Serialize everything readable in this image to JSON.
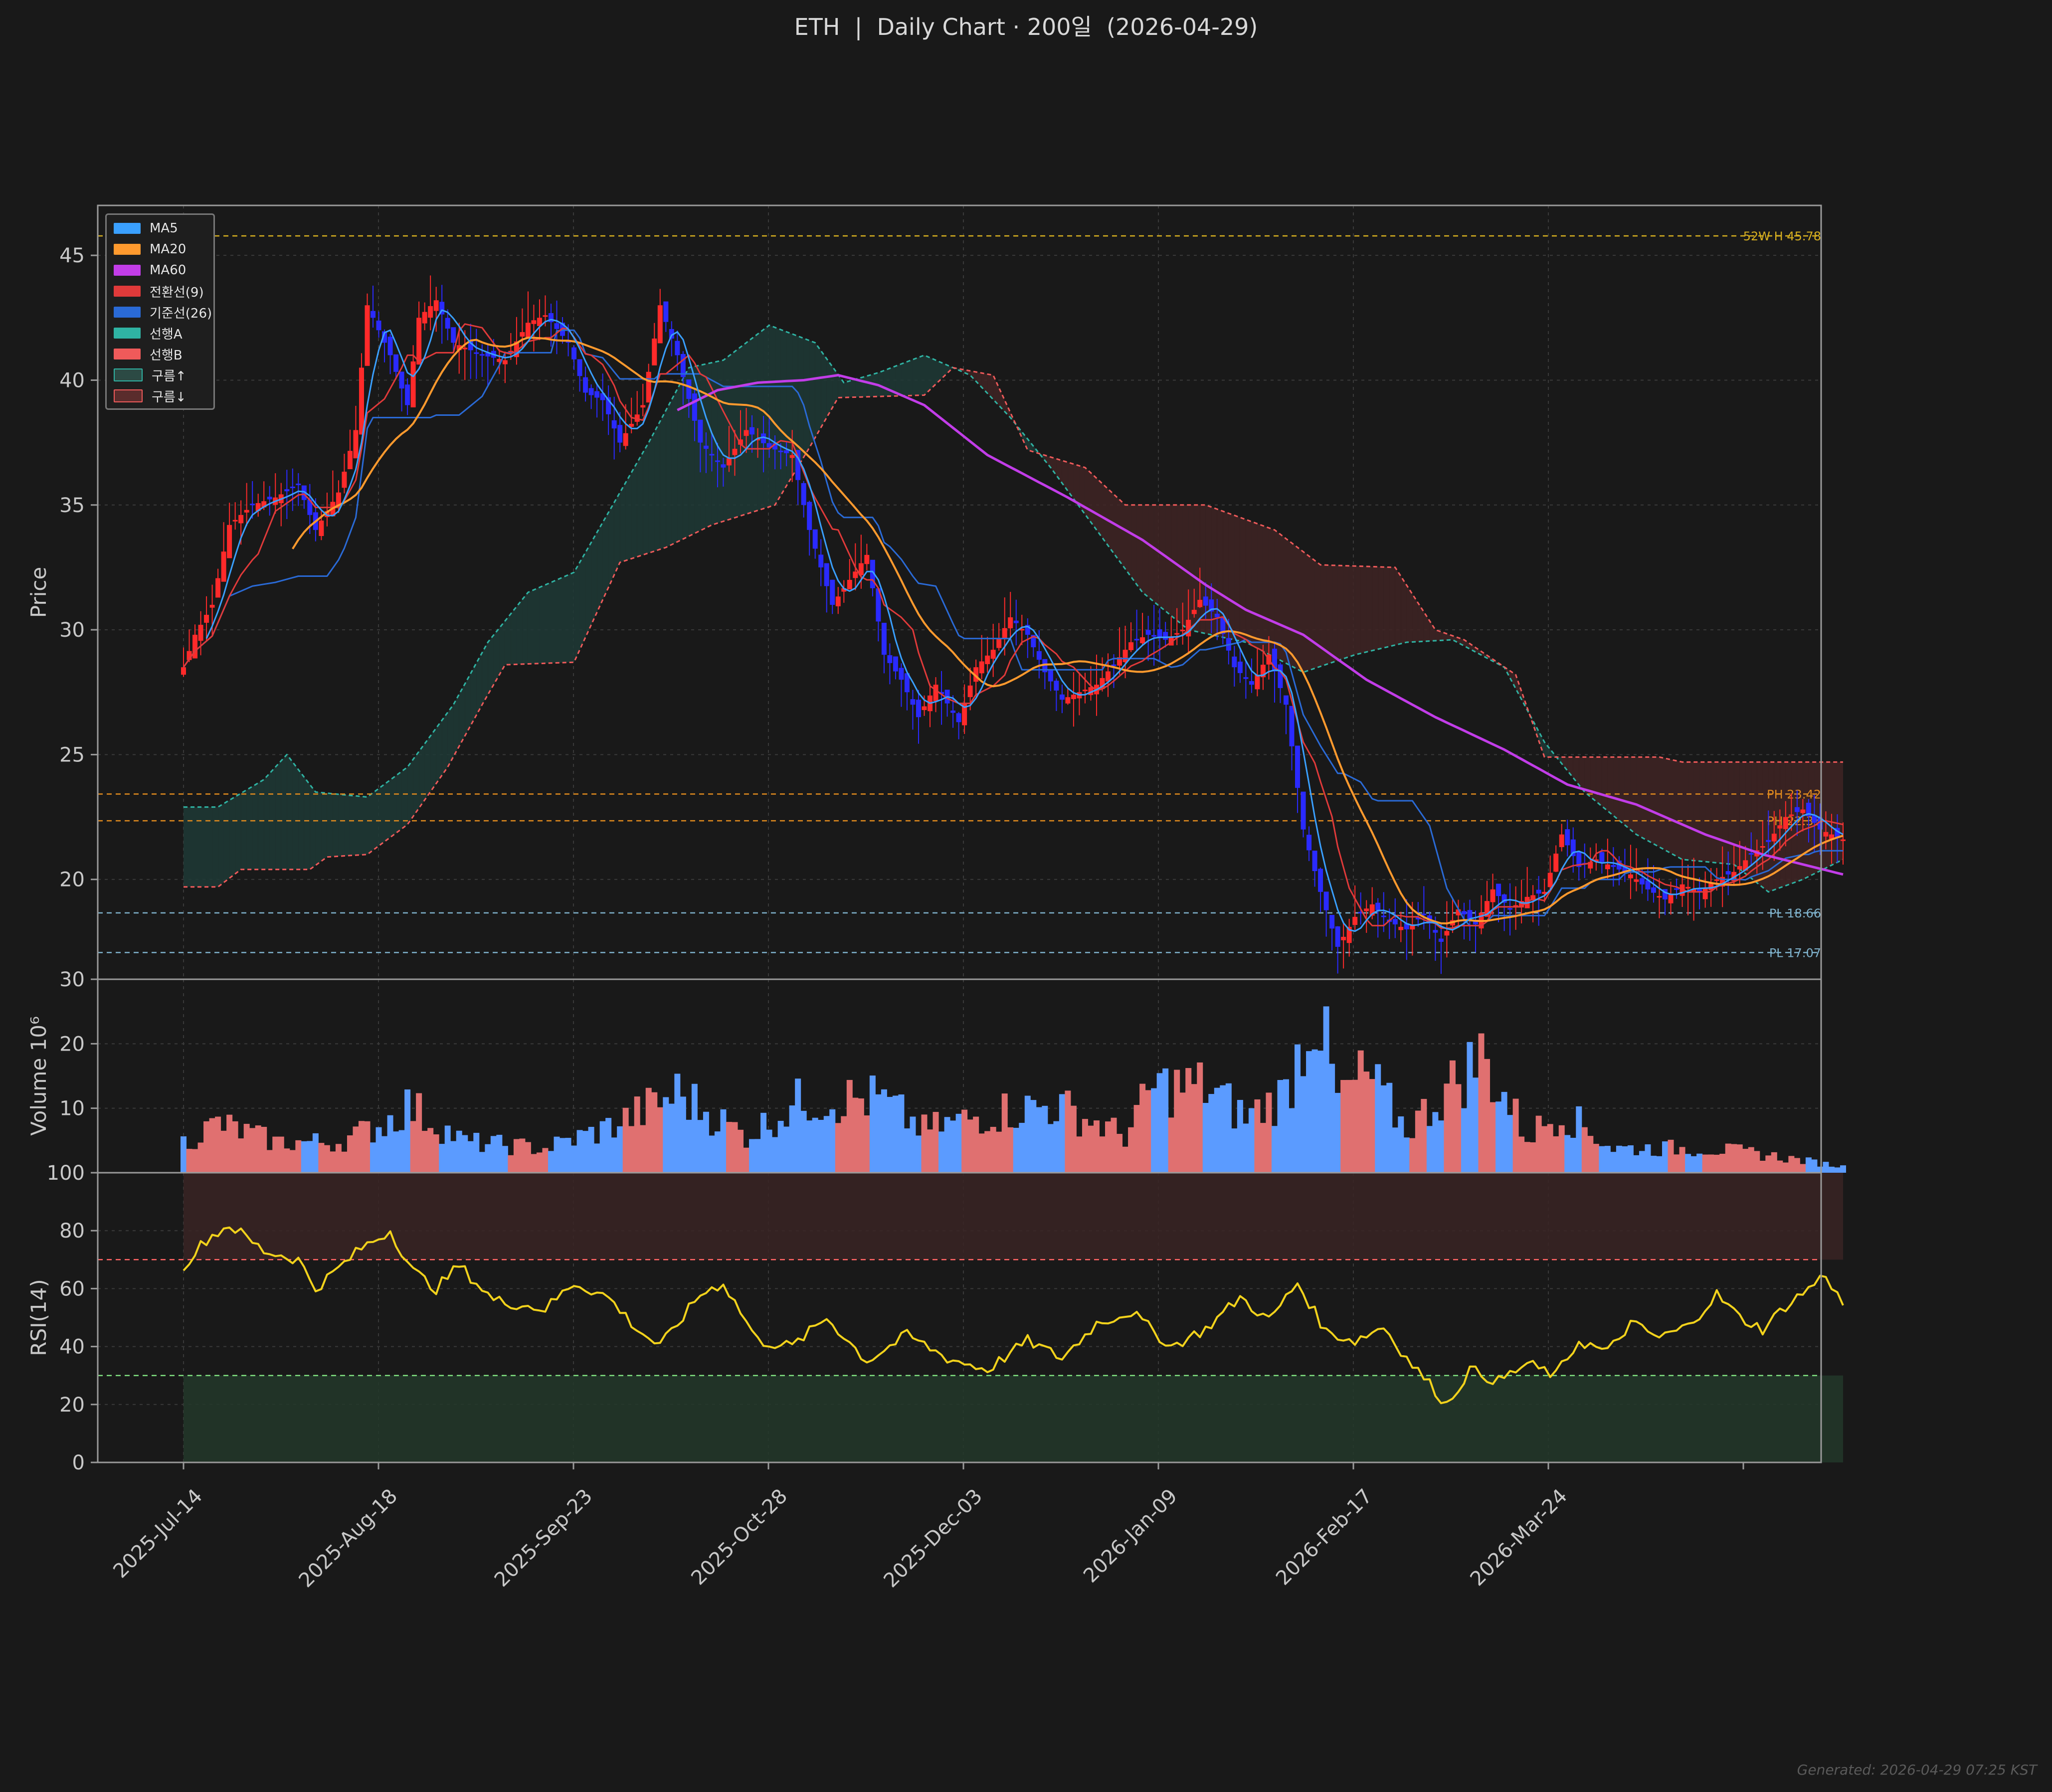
{
  "title": {
    "symbol": "ETH",
    "sep": "|",
    "text": "Daily Chart · 200일  (2026-04-29)"
  },
  "footer": "Generated: 2026-04-29 07:25 KST",
  "legend": [
    {
      "label": "MA5",
      "color": "#3aa0ff",
      "kind": "line"
    },
    {
      "label": "MA20",
      "color": "#ff9a2e",
      "kind": "line"
    },
    {
      "label": "MA60",
      "color": "#c23de8",
      "kind": "line"
    },
    {
      "label": "전환선(9)",
      "color": "#e03a3a",
      "kind": "line"
    },
    {
      "label": "기준선(26)",
      "color": "#2a6ad6",
      "kind": "line"
    },
    {
      "label": "선행A",
      "color": "#2fb3a3",
      "kind": "line"
    },
    {
      "label": "선행B",
      "color": "#ef5a5a",
      "kind": "line"
    },
    {
      "label": "구름↑",
      "color": "#2c4a44",
      "kind": "box"
    },
    {
      "label": "구름↓",
      "color": "#5a2c2c",
      "kind": "box"
    }
  ],
  "chart_data": [
    {
      "type": "candlestick",
      "panel": "price",
      "ylabel": "Price",
      "ylim": [
        16,
        47
      ],
      "yticks": [
        20,
        25,
        30,
        35,
        40,
        45
      ],
      "x_start": "2025-07-14",
      "x_end": "2026-04-29",
      "xticks": [
        "2025-Jul-14",
        "2025-Aug-18",
        "2025-Sep-23",
        "2025-Oct-28",
        "2025-Dec-03",
        "2026-Jan-09",
        "2026-Feb-17",
        "2026-Mar-24"
      ],
      "reference_lines": [
        {
          "label": "52W H 45.78",
          "value": 45.78,
          "color": "#d8b020"
        },
        {
          "label": "PH 23.42",
          "value": 23.42,
          "color": "#e08a1e"
        },
        {
          "label": "PH 22.35",
          "value": 22.35,
          "color": "#e08a1e"
        },
        {
          "label": "PL 18.66",
          "value": 18.66,
          "color": "#7fb2cc"
        },
        {
          "label": "PL 17.07",
          "value": 17.07,
          "color": "#7fb2cc"
        }
      ],
      "close_keypoints": [
        [
          "2025-07-14",
          28.5
        ],
        [
          "2025-07-16",
          29.8
        ],
        [
          "2025-07-19",
          31.0
        ],
        [
          "2025-07-22",
          34.2
        ],
        [
          "2025-07-26",
          35.0
        ],
        [
          "2025-07-30",
          35.3
        ],
        [
          "2025-08-03",
          35.8
        ],
        [
          "2025-08-06",
          34.0
        ],
        [
          "2025-08-10",
          35.5
        ],
        [
          "2025-08-13",
          38.0
        ],
        [
          "2025-08-15",
          43.0
        ],
        [
          "2025-08-17",
          42.0
        ],
        [
          "2025-08-19",
          41.0
        ],
        [
          "2025-08-22",
          39.0
        ],
        [
          "2025-08-24",
          42.5
        ],
        [
          "2025-08-27",
          43.2
        ],
        [
          "2025-08-30",
          41.5
        ],
        [
          "2025-09-04",
          41.0
        ],
        [
          "2025-09-08",
          40.8
        ],
        [
          "2025-09-12",
          42.3
        ],
        [
          "2025-09-15",
          42.6
        ],
        [
          "2025-09-19",
          41.5
        ],
        [
          "2025-09-22",
          39.5
        ],
        [
          "2025-09-25",
          39.2
        ],
        [
          "2025-09-28",
          37.5
        ],
        [
          "2025-10-02",
          39.0
        ],
        [
          "2025-10-05",
          43.0
        ],
        [
          "2025-10-08",
          41.0
        ],
        [
          "2025-10-12",
          37.5
        ],
        [
          "2025-10-16",
          36.5
        ],
        [
          "2025-10-20",
          38.0
        ],
        [
          "2025-10-24",
          37.3
        ],
        [
          "2025-10-28",
          37.0
        ],
        [
          "2025-10-31",
          34.0
        ],
        [
          "2025-11-04",
          31.0
        ],
        [
          "2025-11-07",
          32.0
        ],
        [
          "2025-11-10",
          33.0
        ],
        [
          "2025-11-13",
          29.0
        ],
        [
          "2025-11-16",
          28.0
        ],
        [
          "2025-11-19",
          26.5
        ],
        [
          "2025-11-22",
          27.8
        ],
        [
          "2025-11-26",
          26.3
        ],
        [
          "2025-11-29",
          28.5
        ],
        [
          "2025-12-02",
          29.2
        ],
        [
          "2025-12-05",
          30.5
        ],
        [
          "2025-12-08",
          29.8
        ],
        [
          "2025-12-11",
          28.3
        ],
        [
          "2025-12-14",
          27.2
        ],
        [
          "2025-12-17",
          27.5
        ],
        [
          "2025-12-20",
          27.8
        ],
        [
          "2025-12-23",
          28.6
        ],
        [
          "2025-12-26",
          29.5
        ],
        [
          "2025-12-29",
          29.8
        ],
        [
          "2026-01-01",
          29.6
        ],
        [
          "2026-01-04",
          30.0
        ],
        [
          "2026-01-07",
          31.2
        ],
        [
          "2026-01-10",
          30.5
        ],
        [
          "2026-01-13",
          28.5
        ],
        [
          "2026-01-16",
          27.8
        ],
        [
          "2026-01-19",
          29.0
        ],
        [
          "2026-01-22",
          27.0
        ],
        [
          "2026-01-25",
          22.0
        ],
        [
          "2026-01-28",
          19.5
        ],
        [
          "2026-01-31",
          17.3
        ],
        [
          "2026-02-03",
          18.5
        ],
        [
          "2026-02-06",
          19.0
        ],
        [
          "2026-02-09",
          18.3
        ],
        [
          "2026-02-12",
          18.0
        ],
        [
          "2026-02-15",
          18.6
        ],
        [
          "2026-02-18",
          17.5
        ],
        [
          "2026-02-21",
          18.8
        ],
        [
          "2026-02-24",
          18.2
        ],
        [
          "2026-02-27",
          19.6
        ],
        [
          "2026-03-02",
          18.8
        ],
        [
          "2026-03-05",
          19.3
        ],
        [
          "2026-03-08",
          19.5
        ],
        [
          "2026-03-11",
          21.8
        ],
        [
          "2026-03-14",
          20.5
        ],
        [
          "2026-03-17",
          20.8
        ],
        [
          "2026-03-20",
          20.5
        ],
        [
          "2026-03-23",
          20.2
        ],
        [
          "2026-03-26",
          19.6
        ],
        [
          "2026-03-29",
          19.2
        ],
        [
          "2026-04-01",
          19.8
        ],
        [
          "2026-04-04",
          19.5
        ],
        [
          "2026-04-07",
          20.0
        ],
        [
          "2026-04-10",
          20.3
        ],
        [
          "2026-04-13",
          21.0
        ],
        [
          "2026-04-16",
          21.5
        ],
        [
          "2026-04-19",
          22.5
        ],
        [
          "2026-04-22",
          22.8
        ],
        [
          "2026-04-25",
          22.0
        ],
        [
          "2026-04-29",
          21.6
        ]
      ],
      "ma60_keypoints": [
        [
          "2025-10-08",
          38.8
        ],
        [
          "2025-10-15",
          39.6
        ],
        [
          "2025-10-22",
          39.9
        ],
        [
          "2025-10-30",
          40.0
        ],
        [
          "2025-11-05",
          40.2
        ],
        [
          "2025-11-12",
          39.8
        ],
        [
          "2025-11-20",
          39.0
        ],
        [
          "2025-12-01",
          37.0
        ],
        [
          "2025-12-15",
          35.3
        ],
        [
          "2025-12-28",
          33.6
        ],
        [
          "2026-01-08",
          31.8
        ],
        [
          "2026-01-15",
          30.8
        ],
        [
          "2026-01-25",
          29.8
        ],
        [
          "2026-02-05",
          28.0
        ],
        [
          "2026-02-17",
          26.5
        ],
        [
          "2026-03-01",
          25.2
        ],
        [
          "2026-03-12",
          23.8
        ],
        [
          "2026-03-24",
          23.0
        ],
        [
          "2026-04-05",
          21.8
        ],
        [
          "2026-04-15",
          21.0
        ],
        [
          "2026-04-29",
          20.2
        ]
      ],
      "span_a_keypoints": [
        [
          "2025-07-14",
          22.9
        ],
        [
          "2025-07-20",
          22.9
        ],
        [
          "2025-07-28",
          24.0
        ],
        [
          "2025-08-01",
          25.0
        ],
        [
          "2025-08-06",
          23.5
        ],
        [
          "2025-08-15",
          23.3
        ],
        [
          "2025-08-22",
          24.5
        ],
        [
          "2025-08-30",
          27.0
        ],
        [
          "2025-09-05",
          29.5
        ],
        [
          "2025-09-12",
          31.5
        ],
        [
          "2025-09-20",
          32.3
        ],
        [
          "2025-09-28",
          35.5
        ],
        [
          "2025-10-03",
          37.5
        ],
        [
          "2025-10-10",
          40.5
        ],
        [
          "2025-10-16",
          40.8
        ],
        [
          "2025-10-24",
          42.2
        ],
        [
          "2025-11-01",
          41.5
        ],
        [
          "2025-11-06",
          39.9
        ],
        [
          "2025-11-12",
          40.3
        ],
        [
          "2025-11-20",
          41.0
        ],
        [
          "2025-11-28",
          40.2
        ],
        [
          "2025-12-05",
          38.5
        ],
        [
          "2025-12-12",
          36.5
        ],
        [
          "2025-12-20",
          34.0
        ],
        [
          "2025-12-28",
          31.5
        ],
        [
          "2026-01-05",
          30.0
        ],
        [
          "2026-01-15",
          29.5
        ],
        [
          "2026-01-25",
          28.3
        ],
        [
          "2026-02-03",
          29.0
        ],
        [
          "2026-02-12",
          29.5
        ],
        [
          "2026-02-20",
          29.6
        ],
        [
          "2026-03-01",
          28.5
        ],
        [
          "2026-03-08",
          25.5
        ],
        [
          "2026-03-15",
          23.5
        ],
        [
          "2026-03-24",
          21.8
        ],
        [
          "2026-04-01",
          20.8
        ],
        [
          "2026-04-10",
          20.6
        ],
        [
          "2026-04-16",
          19.5
        ],
        [
          "2026-04-22",
          20.0
        ],
        [
          "2026-04-29",
          20.8
        ]
      ],
      "span_b_keypoints": [
        [
          "2025-07-14",
          19.7
        ],
        [
          "2025-07-20",
          19.7
        ],
        [
          "2025-07-24",
          20.4
        ],
        [
          "2025-08-05",
          20.4
        ],
        [
          "2025-08-08",
          20.9
        ],
        [
          "2025-08-15",
          21.0
        ],
        [
          "2025-08-22",
          22.2
        ],
        [
          "2025-08-29",
          24.5
        ],
        [
          "2025-09-04",
          27.0
        ],
        [
          "2025-09-08",
          28.6
        ],
        [
          "2025-09-20",
          28.7
        ],
        [
          "2025-09-28",
          32.7
        ],
        [
          "2025-10-06",
          33.3
        ],
        [
          "2025-10-14",
          34.2
        ],
        [
          "2025-10-25",
          35.0
        ],
        [
          "2025-10-31",
          37.3
        ],
        [
          "2025-11-05",
          39.3
        ],
        [
          "2025-11-20",
          39.4
        ],
        [
          "2025-11-25",
          40.5
        ],
        [
          "2025-12-02",
          40.2
        ],
        [
          "2025-12-08",
          37.2
        ],
        [
          "2025-12-18",
          36.5
        ],
        [
          "2025-12-25",
          35.0
        ],
        [
          "2026-01-08",
          35.0
        ],
        [
          "2026-01-20",
          34.0
        ],
        [
          "2026-01-28",
          32.6
        ],
        [
          "2026-02-10",
          32.5
        ],
        [
          "2026-02-17",
          30.0
        ],
        [
          "2026-02-22",
          29.6
        ],
        [
          "2026-03-03",
          28.2
        ],
        [
          "2026-03-08",
          24.9
        ],
        [
          "2026-03-28",
          24.9
        ],
        [
          "2026-04-01",
          24.7
        ],
        [
          "2026-04-29",
          24.7
        ]
      ]
    },
    {
      "type": "bar",
      "panel": "volume",
      "ylabel": "Volume  10⁶",
      "ylim": [
        0,
        30
      ],
      "yticks": [
        10,
        20,
        30
      ],
      "values_keypoints": [
        [
          "2025-07-14",
          5
        ],
        [
          "2025-07-20",
          8
        ],
        [
          "2025-07-30",
          5
        ],
        [
          "2025-08-10",
          5
        ],
        [
          "2025-08-18",
          8
        ],
        [
          "2025-08-22",
          11
        ],
        [
          "2025-09-01",
          5
        ],
        [
          "2025-09-15",
          4
        ],
        [
          "2025-09-25",
          7
        ],
        [
          "2025-10-02",
          10
        ],
        [
          "2025-10-08",
          13
        ],
        [
          "2025-10-20",
          6
        ],
        [
          "2025-10-30",
          12
        ],
        [
          "2025-11-12",
          12
        ],
        [
          "2025-11-20",
          7
        ],
        [
          "2025-12-03",
          10
        ],
        [
          "2025-12-13",
          11
        ],
        [
          "2025-12-25",
          6
        ],
        [
          "2025-12-30",
          14
        ],
        [
          "2026-01-08",
          14
        ],
        [
          "2026-01-15",
          9
        ],
        [
          "2026-01-22",
          13
        ],
        [
          "2026-01-27",
          28
        ],
        [
          "2026-01-31",
          12
        ],
        [
          "2026-02-05",
          16
        ],
        [
          "2026-02-12",
          7
        ],
        [
          "2026-02-25",
          19
        ],
        [
          "2026-03-05",
          6
        ],
        [
          "2026-03-11",
          10
        ],
        [
          "2026-03-20",
          4
        ],
        [
          "2026-04-05",
          4
        ],
        [
          "2026-04-15",
          3
        ],
        [
          "2026-04-29",
          1
        ]
      ]
    },
    {
      "type": "line",
      "panel": "rsi",
      "ylabel": "RSI(14)",
      "ylim": [
        0,
        100
      ],
      "yticks": [
        0,
        20,
        40,
        60,
        80,
        100
      ],
      "overbought": 70,
      "oversold": 30,
      "values_keypoints": [
        [
          "2025-07-14",
          68
        ],
        [
          "2025-07-18",
          77
        ],
        [
          "2025-07-22",
          82
        ],
        [
          "2025-07-28",
          73
        ],
        [
          "2025-08-03",
          70
        ],
        [
          "2025-08-06",
          60
        ],
        [
          "2025-08-14",
          74
        ],
        [
          "2025-08-19",
          80
        ],
        [
          "2025-08-23",
          66
        ],
        [
          "2025-08-27",
          60
        ],
        [
          "2025-08-31",
          68
        ],
        [
          "2025-09-06",
          56
        ],
        [
          "2025-09-15",
          53
        ],
        [
          "2025-09-20",
          62
        ],
        [
          "2025-09-26",
          57
        ],
        [
          "2025-10-01",
          46
        ],
        [
          "2025-10-05",
          40
        ],
        [
          "2025-10-12",
          58
        ],
        [
          "2025-10-16",
          62
        ],
        [
          "2025-10-22",
          42
        ],
        [
          "2025-10-28",
          40
        ],
        [
          "2025-11-03",
          50
        ],
        [
          "2025-11-10",
          35
        ],
        [
          "2025-11-17",
          44
        ],
        [
          "2025-11-24",
          36
        ],
        [
          "2025-12-01",
          32
        ],
        [
          "2025-12-08",
          42
        ],
        [
          "2025-12-14",
          36
        ],
        [
          "2025-12-20",
          48
        ],
        [
          "2025-12-26",
          52
        ],
        [
          "2026-01-02",
          40
        ],
        [
          "2026-01-08",
          46
        ],
        [
          "2026-01-14",
          57
        ],
        [
          "2026-01-19",
          49
        ],
        [
          "2026-01-24",
          62
        ],
        [
          "2026-01-29",
          45
        ],
        [
          "2026-02-03",
          42
        ],
        [
          "2026-02-08",
          47
        ],
        [
          "2026-02-12",
          36
        ],
        [
          "2026-02-16",
          27
        ],
        [
          "2026-02-19",
          20
        ],
        [
          "2026-02-23",
          32
        ],
        [
          "2026-02-28",
          28
        ],
        [
          "2026-03-05",
          34
        ],
        [
          "2026-03-10",
          30
        ],
        [
          "2026-03-14",
          42
        ],
        [
          "2026-03-19",
          38
        ],
        [
          "2026-03-23",
          48
        ],
        [
          "2026-03-28",
          43
        ],
        [
          "2026-04-02",
          47
        ],
        [
          "2026-04-07",
          58
        ],
        [
          "2026-04-11",
          50
        ],
        [
          "2026-04-15",
          46
        ],
        [
          "2026-04-19",
          54
        ],
        [
          "2026-04-23",
          60
        ],
        [
          "2026-04-26",
          65
        ],
        [
          "2026-04-29",
          54
        ]
      ]
    }
  ],
  "colors": {
    "background": "#191919",
    "grid": "#3a3a3a",
    "up_candle": "#ff2a2a",
    "down_candle": "#2a2aff",
    "up_volume": "#e07070",
    "down_volume": "#5b9bff",
    "rsi_line": "#f2d21c",
    "overbought_line": "#ff6464",
    "oversold_line": "#7fe07f"
  }
}
